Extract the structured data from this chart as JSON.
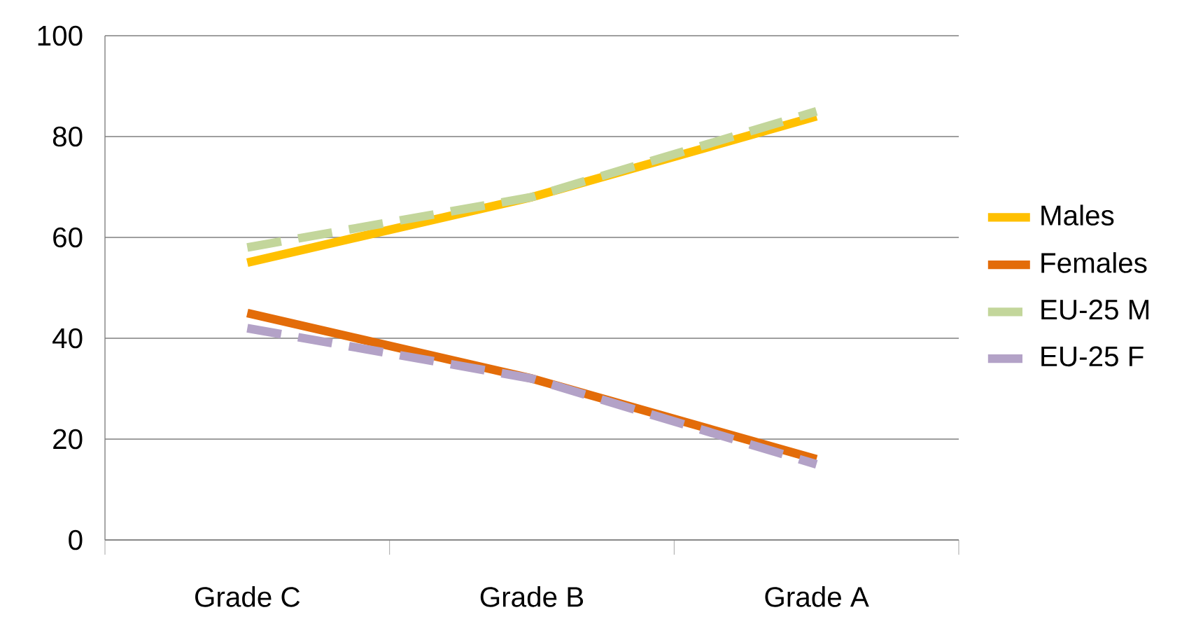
{
  "chart_data": {
    "type": "line",
    "categories": [
      "Grade C",
      "Grade B",
      "Grade A"
    ],
    "series": [
      {
        "name": "Males",
        "color": "#ffc000",
        "values": [
          55,
          68,
          84
        ],
        "line_style": "solid"
      },
      {
        "name": "Females",
        "color": "#e36c09",
        "values": [
          45,
          32,
          16
        ],
        "line_style": "solid"
      },
      {
        "name": "EU-25 M",
        "color": "#c3d69b",
        "values": [
          58,
          68,
          85
        ],
        "line_style": "dashed"
      },
      {
        "name": "EU-25 F",
        "color": "#b3a2c7",
        "values": [
          42,
          32,
          15
        ],
        "line_style": "dashed"
      }
    ],
    "ylim": [
      0,
      100
    ],
    "yticks": [
      0,
      20,
      40,
      60,
      80,
      100
    ],
    "grid": "y",
    "legend": "right",
    "marker": "none"
  }
}
